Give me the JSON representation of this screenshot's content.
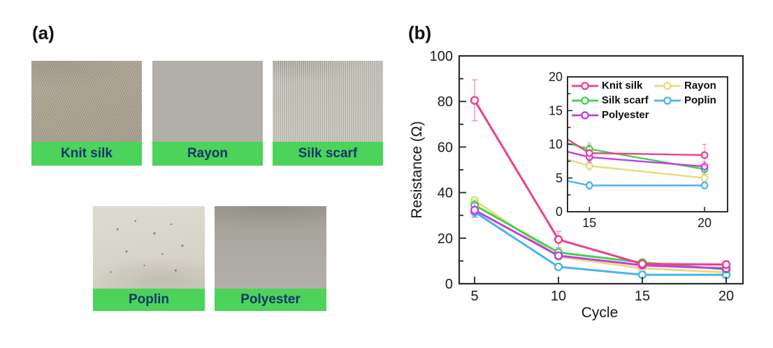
{
  "panel_a": {
    "label": "(a)",
    "fabrics": [
      {
        "name": "Knit silk",
        "texture": "diagonal-weave"
      },
      {
        "name": "Rayon",
        "texture": "smooth-gray"
      },
      {
        "name": "Silk scarf",
        "texture": "vertical-ribs"
      },
      {
        "name": "Poplin",
        "texture": "light-speckled"
      },
      {
        "name": "Polyester",
        "texture": "smooth-gray"
      }
    ],
    "label_bar_color": "#4bd35a",
    "label_text_color": "#15356b"
  },
  "panel_b": {
    "label": "(b)"
  },
  "chart_data": {
    "type": "line",
    "title": "",
    "xlabel": "Cycle",
    "ylabel": "Resistance (Ω)",
    "x": [
      5,
      10,
      15,
      20
    ],
    "xlim": [
      4.08,
      21
    ],
    "ylim": [
      0,
      100
    ],
    "x_ticks": [
      5,
      10,
      15,
      20
    ],
    "y_ticks": [
      0,
      20,
      40,
      60,
      80,
      100
    ],
    "y_minor_ticks": [
      10,
      30,
      50,
      70,
      90
    ],
    "grid": false,
    "series": [
      {
        "name": "Knit silk",
        "color": "#ee3e8e",
        "values": [
          80.5,
          19.4,
          8.7,
          8.4
        ],
        "errors": [
          9.0,
          3.6,
          1.2,
          1.6
        ]
      },
      {
        "name": "Silk scarf",
        "color": "#3dd44a",
        "values": [
          34.5,
          13.7,
          9.3,
          6.3
        ],
        "errors": [
          2.2,
          1.3,
          0.9,
          0.7
        ]
      },
      {
        "name": "Rayon",
        "color": "#e9db7a",
        "values": [
          36.5,
          11.8,
          6.8,
          5.0
        ],
        "errors": [
          1.8,
          1.0,
          0.7,
          0.6
        ]
      },
      {
        "name": "Polyester",
        "color": "#c43ce4",
        "values": [
          32.3,
          12.3,
          8.1,
          6.7
        ],
        "errors": [
          3.0,
          1.4,
          0.8,
          0.7
        ]
      },
      {
        "name": "Poplin",
        "color": "#47b5ed",
        "values": [
          31.5,
          7.4,
          3.9,
          3.9
        ],
        "errors": [
          2.4,
          0.9,
          0.6,
          0.5
        ]
      }
    ],
    "inset": {
      "xlim": [
        14.05,
        21
      ],
      "ylim": [
        0,
        20
      ],
      "x_ticks": [
        15,
        20
      ],
      "y_ticks": [
        0,
        5,
        10,
        15,
        20
      ],
      "y_minor_ticks": [
        2.5,
        7.5,
        12.5,
        17.5
      ],
      "legend_order": [
        "Knit silk",
        "Rayon",
        "Silk scarf",
        "Poplin",
        "Polyester"
      ],
      "legend_position": "top-inside"
    }
  }
}
